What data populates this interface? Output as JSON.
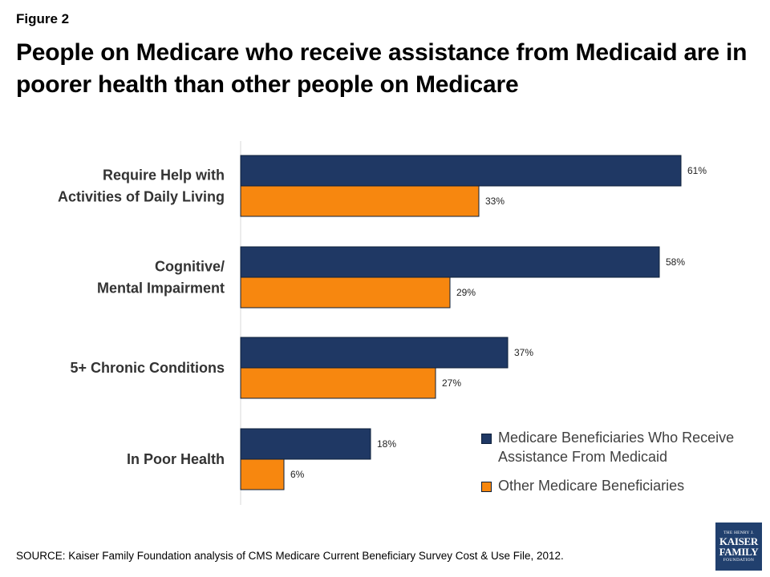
{
  "figure_label": "Figure 2",
  "title": "People on Medicare who receive assistance from Medicaid are in poorer health than other people on Medicare",
  "source": "SOURCE:  Kaiser Family Foundation  analysis of CMS Medicare Current Beneficiary Survey Cost & Use File, 2012.",
  "logo": {
    "top": "THE HENRY J.",
    "line1": "KAISER",
    "line2": "FAMILY",
    "bottom": "FOUNDATION"
  },
  "colors": {
    "series1": "#1f3864",
    "series2": "#f7870f",
    "logo_bg": "#21406e"
  },
  "chart_data": {
    "type": "bar",
    "orientation": "horizontal",
    "title": "People on Medicare who receive assistance from Medicaid are in poorer health than other people on Medicare",
    "categories": [
      [
        "Require Help with",
        "Activities of Daily Living"
      ],
      [
        "Cognitive/",
        "Mental Impairment"
      ],
      [
        "5+ Chronic Conditions"
      ],
      [
        "In Poor Health"
      ]
    ],
    "series": [
      {
        "name": "Medicare Beneficiaries Who Receive Assistance From Medicaid",
        "values": [
          61,
          58,
          37,
          18
        ],
        "labels": [
          "61%",
          "58%",
          "37%",
          "18%"
        ],
        "color": "#1f3864"
      },
      {
        "name": "Other Medicare Beneficiaries",
        "values": [
          33,
          29,
          27,
          6
        ],
        "labels": [
          "33%",
          "29%",
          "27%",
          "6%"
        ],
        "color": "#f7870f"
      }
    ],
    "xlim": [
      0,
      100
    ],
    "xlabel": "",
    "ylabel": "",
    "grid": false,
    "legend_position": "bottom-right"
  }
}
